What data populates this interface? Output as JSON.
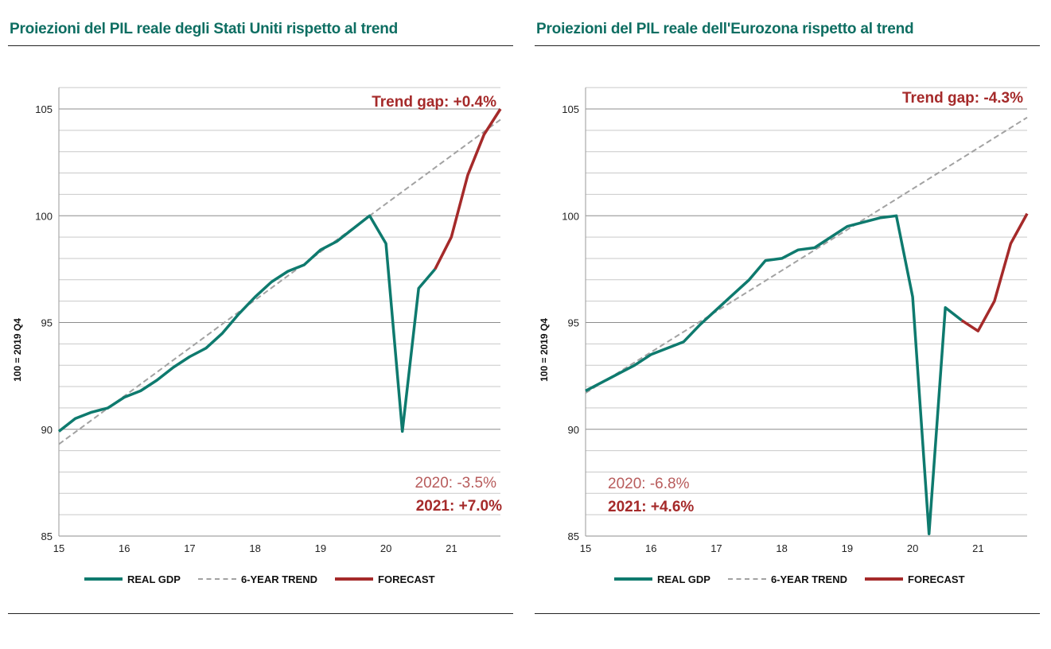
{
  "colors": {
    "real": "#0e7a6e",
    "trend": "#a2a2a2",
    "forecast": "#a52a2a",
    "title": "#0e6e62",
    "grid": "#c9c9c9"
  },
  "legend": {
    "real": "REAL GDP",
    "trend": "6-YEAR TREND",
    "forecast": "FORECAST"
  },
  "chart_data": [
    {
      "type": "line",
      "title": "Proiezioni del PIL reale degli Stati Uniti rispetto al trend",
      "ylabel": "100 = 2019 Q4",
      "xlabel": "",
      "ylim": [
        85,
        106
      ],
      "xlim": [
        15,
        21.75
      ],
      "yticks": [
        85,
        90,
        95,
        100,
        105
      ],
      "xticks": [
        "15",
        "16",
        "17",
        "18",
        "19",
        "20",
        "21"
      ],
      "grid": true,
      "legend_position": "bottom",
      "annotations": {
        "trend_gap": "Trend gap: +0.4%",
        "y2020": "2020: -3.5%",
        "y2021": "2021: +7.0%"
      },
      "series": [
        {
          "name": "REAL GDP",
          "x": [
            15,
            15.25,
            15.5,
            15.75,
            16,
            16.25,
            16.5,
            16.75,
            17,
            17.25,
            17.5,
            17.75,
            18,
            18.25,
            18.5,
            18.75,
            19,
            19.25,
            19.5,
            19.75,
            20,
            20.25,
            20.5,
            20.75
          ],
          "y": [
            89.9,
            90.5,
            90.8,
            91.0,
            91.5,
            91.8,
            92.3,
            92.9,
            93.4,
            93.8,
            94.5,
            95.4,
            96.2,
            96.9,
            97.4,
            97.7,
            98.4,
            98.8,
            99.4,
            100.0,
            98.7,
            89.9,
            96.6,
            97.5
          ]
        },
        {
          "name": "6-YEAR TREND",
          "x": [
            15,
            21.75
          ],
          "y": [
            89.3,
            104.5
          ]
        },
        {
          "name": "FORECAST",
          "x": [
            20.75,
            21,
            21.25,
            21.5,
            21.75
          ],
          "y": [
            97.5,
            99.0,
            101.9,
            103.8,
            105.0
          ]
        }
      ]
    },
    {
      "type": "line",
      "title": "Proiezioni del PIL reale dell'Eurozona rispetto al trend",
      "ylabel": "100 = 2019 Q4",
      "xlabel": "",
      "ylim": [
        85,
        106
      ],
      "xlim": [
        15,
        21.75
      ],
      "yticks": [
        85,
        90,
        95,
        100,
        105
      ],
      "xticks": [
        "15",
        "16",
        "17",
        "18",
        "19",
        "20",
        "21"
      ],
      "grid": true,
      "legend_position": "bottom",
      "annotations": {
        "trend_gap": "Trend gap: -4.3%",
        "y2020": "2020: -6.8%",
        "y2021": "2021: +4.6%"
      },
      "series": [
        {
          "name": "REAL GDP",
          "x": [
            15,
            15.25,
            15.5,
            15.75,
            16,
            16.25,
            16.5,
            16.75,
            17,
            17.25,
            17.5,
            17.75,
            18,
            18.25,
            18.5,
            18.75,
            19,
            19.25,
            19.5,
            19.75,
            20,
            20.25,
            20.5,
            20.75
          ],
          "y": [
            91.8,
            92.2,
            92.6,
            93.0,
            93.5,
            93.8,
            94.1,
            94.9,
            95.6,
            96.3,
            97.0,
            97.9,
            98.0,
            98.4,
            98.5,
            99.0,
            99.5,
            99.7,
            99.9,
            100.0,
            96.2,
            85.1,
            95.7,
            95.1
          ]
        },
        {
          "name": "6-YEAR TREND",
          "x": [
            15,
            21.75
          ],
          "y": [
            91.7,
            104.6
          ]
        },
        {
          "name": "FORECAST",
          "x": [
            20.75,
            21,
            21.25,
            21.5,
            21.75
          ],
          "y": [
            95.1,
            94.6,
            96.0,
            98.7,
            100.1
          ]
        }
      ]
    }
  ]
}
